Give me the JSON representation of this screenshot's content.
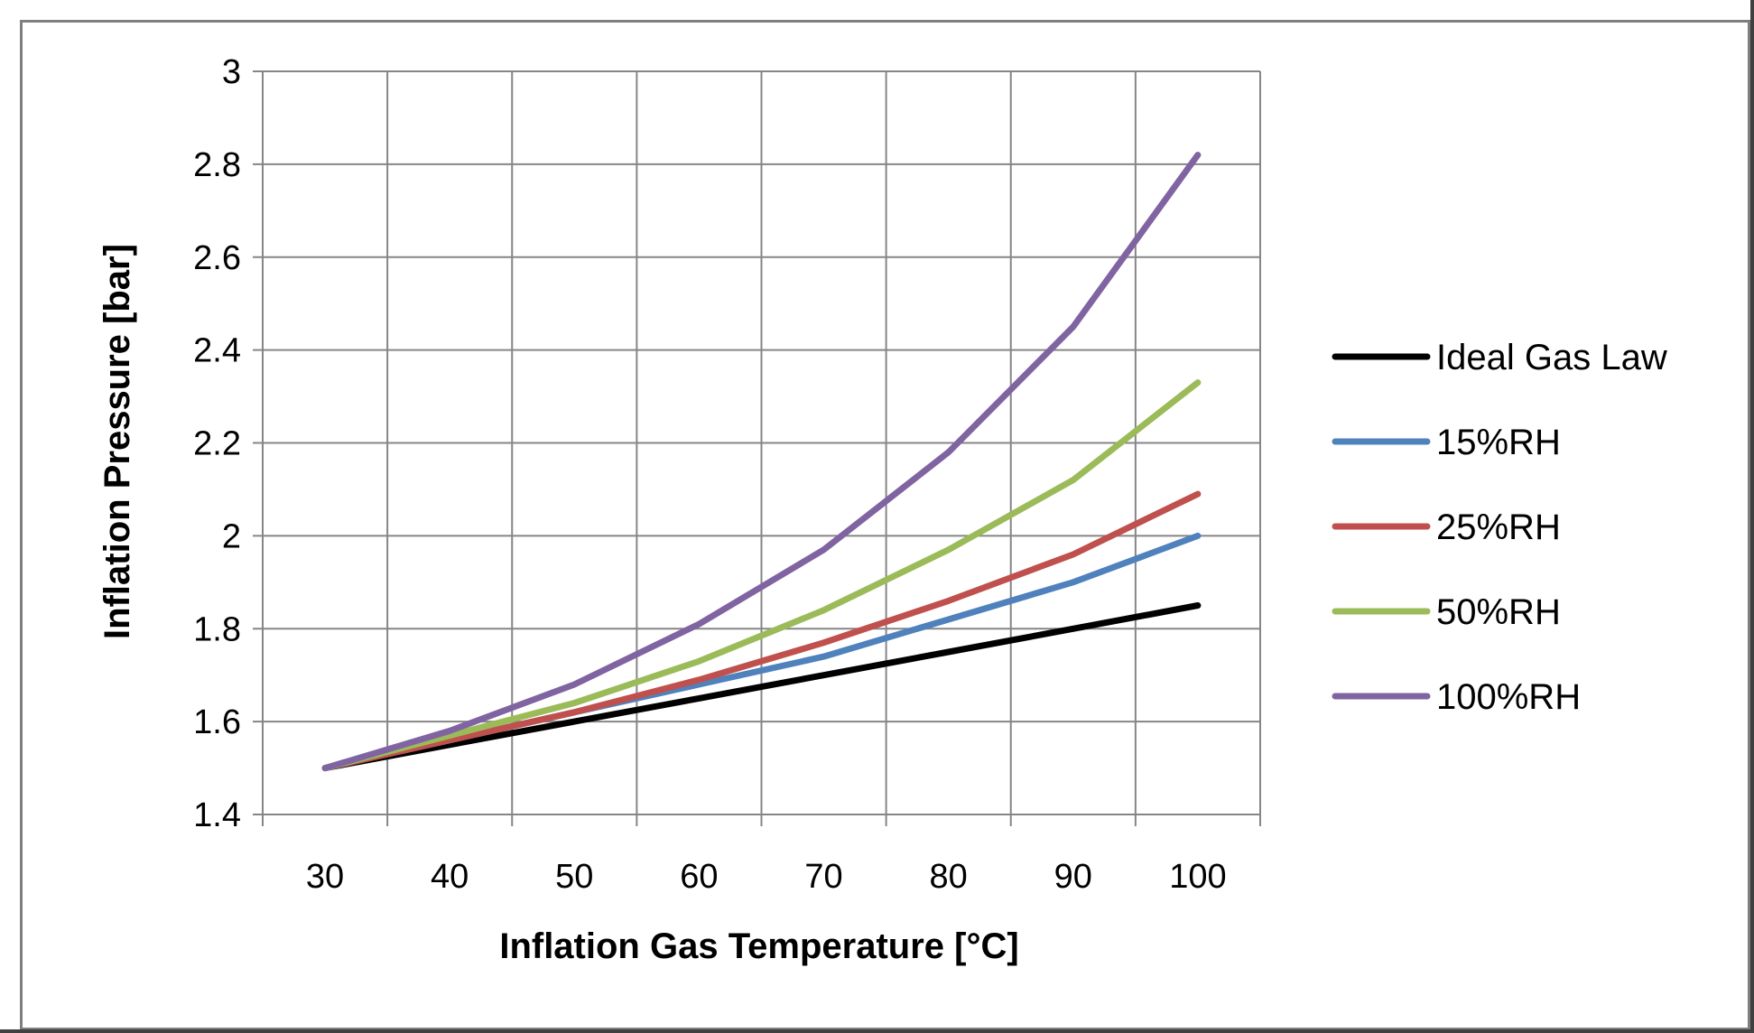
{
  "chart_data": {
    "type": "line",
    "title": "",
    "xlabel": "Inflation Gas Temperature [°C]",
    "ylabel": "Inflation Pressure [bar]",
    "xlim": [
      25,
      105
    ],
    "ylim": [
      1.4,
      3.0
    ],
    "x_ticks": [
      30,
      40,
      50,
      60,
      70,
      80,
      90,
      100
    ],
    "y_ticks": [
      "1.4",
      "1.6",
      "1.8",
      "2",
      "2.2",
      "2.4",
      "2.6",
      "2.8",
      "3"
    ],
    "grid": true,
    "legend_position": "right",
    "x": [
      30,
      40,
      50,
      60,
      70,
      80,
      90,
      100
    ],
    "series": [
      {
        "name": "Ideal Gas Law",
        "color": "#000000",
        "values": [
          1.5,
          1.55,
          1.6,
          1.65,
          1.7,
          1.75,
          1.8,
          1.85
        ]
      },
      {
        "name": "15%RH",
        "color": "#4f81bd",
        "values": [
          1.5,
          1.56,
          1.62,
          1.68,
          1.74,
          1.82,
          1.9,
          2.0
        ]
      },
      {
        "name": "25%RH",
        "color": "#c0504d",
        "values": [
          1.5,
          1.56,
          1.62,
          1.69,
          1.77,
          1.86,
          1.96,
          2.09
        ]
      },
      {
        "name": "50%RH",
        "color": "#9bbb59",
        "values": [
          1.5,
          1.57,
          1.64,
          1.73,
          1.84,
          1.97,
          2.12,
          2.33
        ]
      },
      {
        "name": "100%RH",
        "color": "#8064a2",
        "values": [
          1.5,
          1.58,
          1.68,
          1.81,
          1.97,
          2.18,
          2.45,
          2.82
        ]
      }
    ]
  }
}
